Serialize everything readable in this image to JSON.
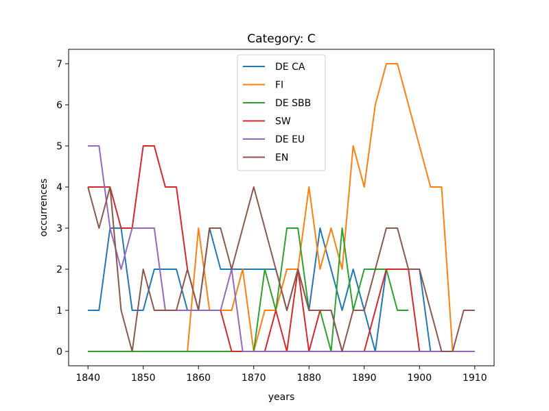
{
  "chart_data": {
    "type": "line",
    "title": "Category: C",
    "xlabel": "years",
    "ylabel": "occurrences",
    "xlim": [
      1836.5,
      1913.5
    ],
    "ylim": [
      -0.35,
      7.35
    ],
    "xticks": [
      1840,
      1850,
      1860,
      1870,
      1880,
      1890,
      1900,
      1910
    ],
    "yticks": [
      0,
      1,
      2,
      3,
      4,
      5,
      6,
      7
    ],
    "grid": false,
    "legend_position": "upper center",
    "x": [
      1840,
      1842,
      1844,
      1846,
      1848,
      1850,
      1852,
      1854,
      1856,
      1858,
      1860,
      1862,
      1864,
      1866,
      1868,
      1870,
      1872,
      1874,
      1876,
      1878,
      1880,
      1882,
      1884,
      1886,
      1888,
      1890,
      1892,
      1894,
      1896,
      1898,
      1900,
      1902,
      1904,
      1906,
      1908,
      1910
    ],
    "series": [
      {
        "name": "DE CA",
        "color": "#1f77b4",
        "values": [
          1,
          1,
          3,
          3,
          1,
          1,
          2,
          2,
          2,
          1,
          1,
          3,
          2,
          2,
          2,
          2,
          2,
          2,
          1,
          2,
          1,
          3,
          2,
          1,
          2,
          1,
          0,
          2,
          2,
          2,
          2,
          0,
          0,
          0,
          0,
          0
        ]
      },
      {
        "name": "FI",
        "color": "#ff7f0e",
        "values": [
          0,
          0,
          0,
          0,
          0,
          0,
          0,
          0,
          0,
          0,
          3,
          1,
          1,
          1,
          2,
          0,
          1,
          1,
          2,
          2,
          4,
          2,
          3,
          2,
          5,
          4,
          6,
          7,
          7,
          6,
          5,
          4,
          4,
          0,
          0,
          0
        ]
      },
      {
        "name": "DE SBB",
        "color": "#2ca02c",
        "values": [
          0,
          0,
          0,
          0,
          0,
          0,
          0,
          0,
          0,
          0,
          0,
          0,
          0,
          0,
          0,
          0,
          2,
          1,
          3,
          3,
          1,
          1,
          0,
          3,
          1,
          2,
          2,
          2,
          1,
          1,
          null,
          null,
          null,
          null,
          null,
          null
        ]
      },
      {
        "name": "SW",
        "color": "#d62728",
        "values": [
          4,
          4,
          4,
          3,
          3,
          5,
          5,
          4,
          4,
          2,
          1,
          1,
          1,
          0,
          0,
          0,
          0,
          1,
          0,
          2,
          0,
          1,
          1,
          0,
          0,
          0,
          1,
          2,
          2,
          2,
          0,
          0,
          0,
          0,
          0,
          0
        ]
      },
      {
        "name": "DE EU",
        "color": "#9467bd",
        "values": [
          5,
          5,
          3,
          2,
          3,
          3,
          3,
          1,
          1,
          1,
          1,
          1,
          1,
          2,
          0,
          0,
          0,
          0,
          0,
          0,
          0,
          0,
          0,
          0,
          0,
          0,
          0,
          0,
          0,
          0,
          0,
          0,
          0,
          0,
          0,
          0
        ]
      },
      {
        "name": "EN",
        "color": "#8c564b",
        "values": [
          4,
          3,
          4,
          1,
          0,
          2,
          1,
          1,
          1,
          2,
          1,
          3,
          3,
          2,
          3,
          4,
          3,
          2,
          1,
          2,
          1,
          1,
          1,
          0,
          1,
          1,
          2,
          3,
          3,
          2,
          2,
          1,
          0,
          0,
          1,
          1
        ]
      }
    ]
  }
}
